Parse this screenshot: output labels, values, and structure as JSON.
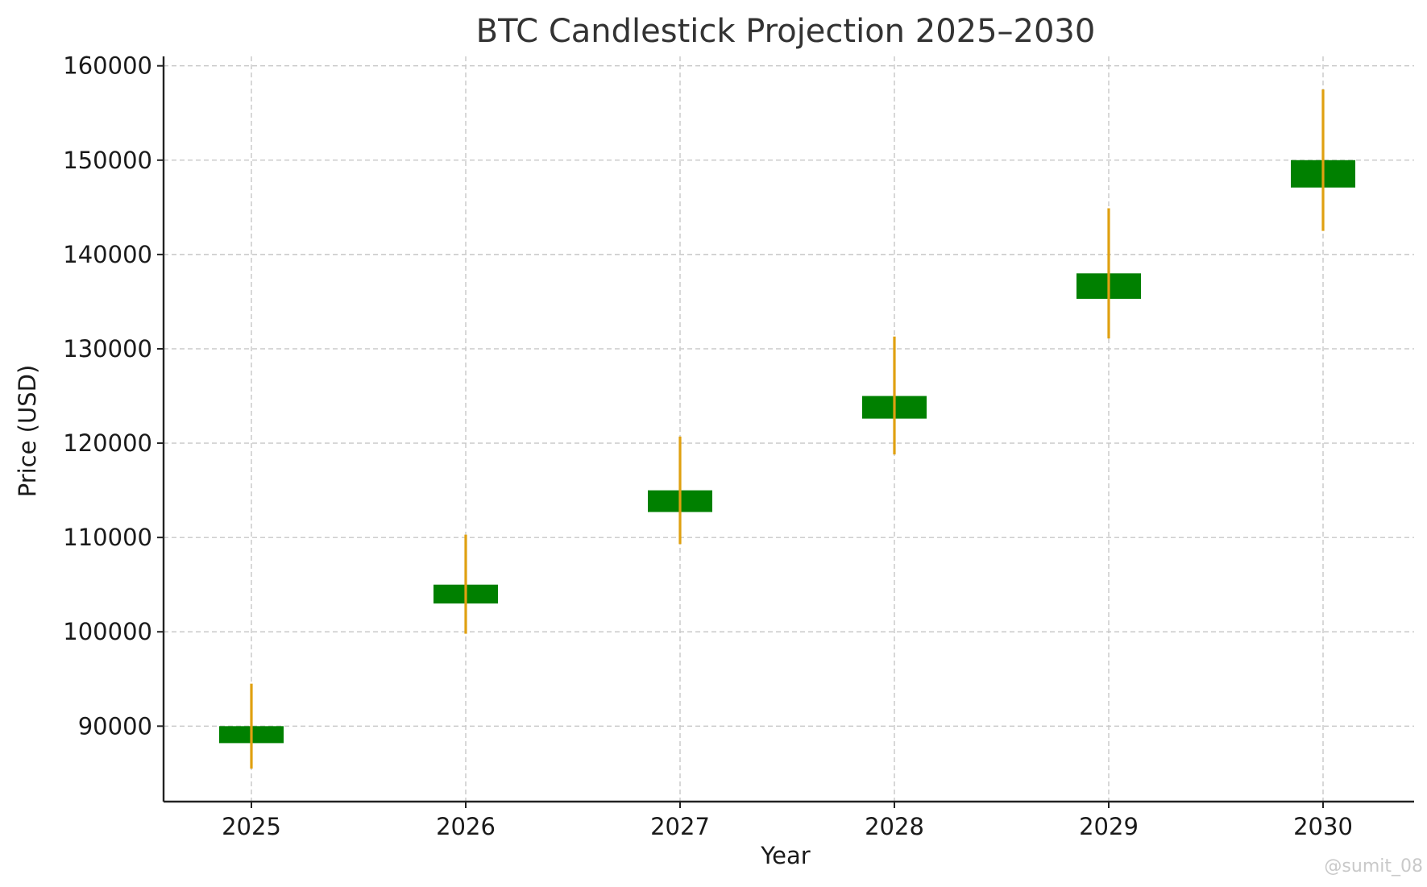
{
  "chart_data": {
    "type": "candlestick",
    "title": "BTC Candlestick Projection 2025–2030",
    "xlabel": "Year",
    "ylabel": "Price (USD)",
    "categories": [
      "2025",
      "2026",
      "2027",
      "2028",
      "2029",
      "2030"
    ],
    "candles": [
      {
        "x": "2025",
        "open": 88200,
        "close": 90000,
        "low": 85500,
        "high": 94500
      },
      {
        "x": "2026",
        "open": 103000,
        "close": 105000,
        "low": 99800,
        "high": 110300
      },
      {
        "x": "2027",
        "open": 112700,
        "close": 115000,
        "low": 109300,
        "high": 120700
      },
      {
        "x": "2028",
        "open": 122600,
        "close": 125000,
        "low": 118800,
        "high": 131300
      },
      {
        "x": "2029",
        "open": 135300,
        "close": 138000,
        "low": 131100,
        "high": 144900
      },
      {
        "x": "2030",
        "open": 147100,
        "close": 150000,
        "low": 142500,
        "high": 157500
      }
    ],
    "yticks": [
      90000,
      100000,
      110000,
      120000,
      130000,
      140000,
      150000,
      160000
    ],
    "ylim": [
      82000,
      161000
    ],
    "grid": true,
    "colors": {
      "body": "#008000",
      "wick": "#e0a010"
    }
  },
  "watermark": "@sumit_08"
}
